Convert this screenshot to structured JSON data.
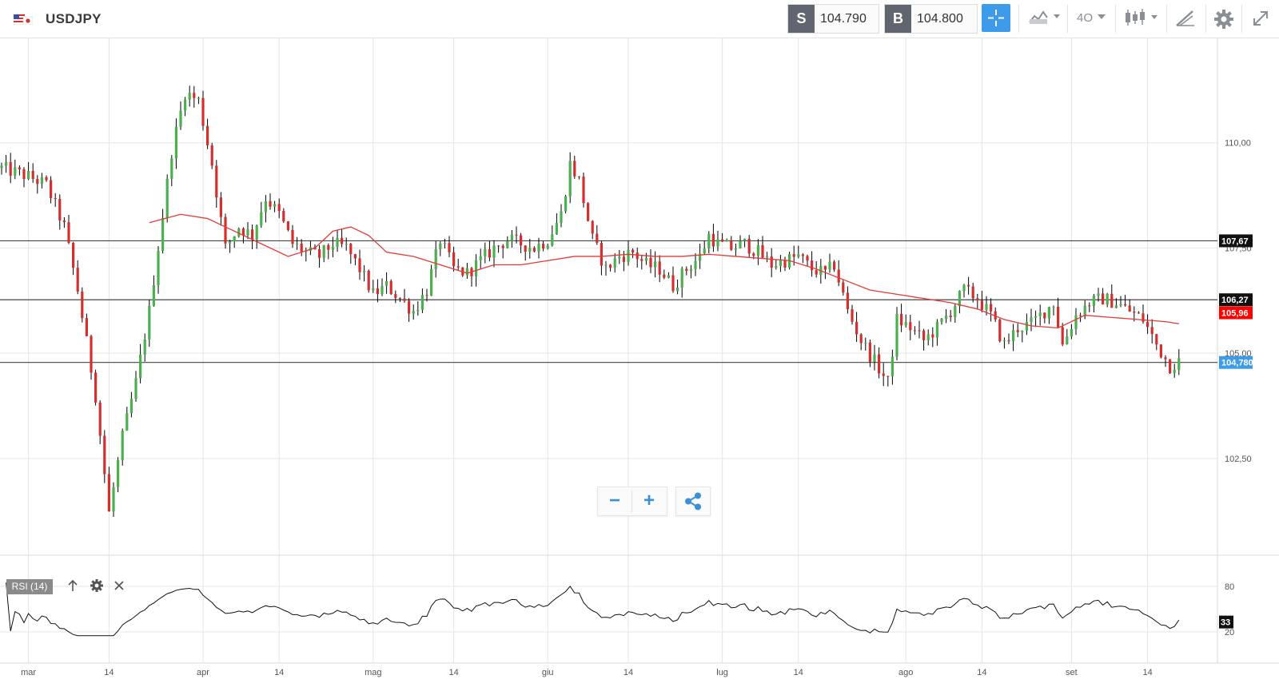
{
  "header": {
    "symbol": "USDJPY",
    "sell_label": "S",
    "sell_price": "104.790",
    "buy_label": "B",
    "buy_price": "104.800",
    "timeframe_label": "4O",
    "icons": [
      "flag-us-jp-icon",
      "crosshair-icon",
      "chart-type-icon",
      "timeframe-dropdown",
      "candles-icon",
      "draw-icon",
      "gear-icon",
      "expand-icon"
    ]
  },
  "colors": {
    "up": "#4caf50",
    "down": "#d32f2f",
    "candle_wick": "#000000",
    "ma": "#e53935",
    "hline": "#444444",
    "grid": "#e6e6e6",
    "current_badge": "#3d9be9",
    "ma_badge": "#ff0000",
    "level_badge": "#111111",
    "accent": "#3d9be9"
  },
  "zoom_controls": {
    "minus": "−",
    "plus": "+"
  },
  "rsi_panel": {
    "label": "RSI (14)",
    "value_badge": "33"
  },
  "chart_data": {
    "type": "candlestick",
    "title": "",
    "x_ticks": [
      "mar",
      "14",
      "apr",
      "14",
      "mag",
      "14",
      "giu",
      "14",
      "lug",
      "14",
      "ago",
      "14",
      "set",
      "14"
    ],
    "y_ticks": [
      "110,00",
      "107,50",
      "105,00",
      "102,50"
    ],
    "ylim": [
      100.2,
      112.5
    ],
    "price_path": [
      [
        0,
        109.4
      ],
      [
        6,
        109.2
      ],
      [
        10,
        109.0
      ],
      [
        14,
        108.0
      ],
      [
        17,
        106.5
      ],
      [
        21,
        104.0
      ],
      [
        24,
        101.2
      ],
      [
        27,
        103.0
      ],
      [
        30,
        104.3
      ],
      [
        33,
        106.0
      ],
      [
        38,
        109.8
      ],
      [
        41,
        111.2
      ],
      [
        44,
        111.0
      ],
      [
        47,
        109.5
      ],
      [
        50,
        107.5
      ],
      [
        53,
        108.0
      ],
      [
        56,
        107.8
      ],
      [
        59,
        108.7
      ],
      [
        62,
        108.3
      ],
      [
        65,
        107.6
      ],
      [
        68,
        107.4
      ],
      [
        71,
        107.3
      ],
      [
        74,
        107.6
      ],
      [
        77,
        107.5
      ],
      [
        80,
        107.0
      ],
      [
        83,
        106.4
      ],
      [
        86,
        106.6
      ],
      [
        89,
        106.3
      ],
      [
        92,
        106.0
      ],
      [
        95,
        106.5
      ],
      [
        98,
        107.7
      ],
      [
        101,
        107.0
      ],
      [
        104,
        106.9
      ],
      [
        107,
        107.2
      ],
      [
        110,
        107.5
      ],
      [
        113,
        107.7
      ],
      [
        116,
        107.6
      ],
      [
        119,
        107.5
      ],
      [
        122,
        107.7
      ],
      [
        125,
        108.3
      ],
      [
        127,
        109.5
      ],
      [
        129,
        109.1
      ],
      [
        132,
        107.7
      ],
      [
        135,
        107.0
      ],
      [
        138,
        107.3
      ],
      [
        141,
        107.4
      ],
      [
        144,
        107.1
      ],
      [
        147,
        107.0
      ],
      [
        150,
        106.6
      ],
      [
        153,
        107.0
      ],
      [
        156,
        107.3
      ],
      [
        158,
        107.8
      ],
      [
        160,
        107.6
      ],
      [
        163,
        107.5
      ],
      [
        166,
        107.6
      ],
      [
        169,
        107.4
      ],
      [
        172,
        107.1
      ],
      [
        175,
        107.2
      ],
      [
        178,
        107.3
      ],
      [
        181,
        107.0
      ],
      [
        184,
        106.9
      ],
      [
        186,
        107.1
      ],
      [
        189,
        106.0
      ],
      [
        192,
        105.3
      ],
      [
        195,
        104.8
      ],
      [
        198,
        104.3
      ],
      [
        200,
        105.8
      ],
      [
        203,
        105.6
      ],
      [
        206,
        105.3
      ],
      [
        209,
        105.6
      ],
      [
        212,
        106.0
      ],
      [
        215,
        106.5
      ],
      [
        218,
        106.3
      ],
      [
        221,
        105.9
      ],
      [
        224,
        105.2
      ],
      [
        227,
        105.6
      ],
      [
        230,
        105.7
      ],
      [
        233,
        106.0
      ],
      [
        235,
        106.2
      ],
      [
        237,
        105.2
      ],
      [
        240,
        105.9
      ],
      [
        243,
        106.2
      ],
      [
        246,
        106.3
      ],
      [
        249,
        106.2
      ],
      [
        252,
        106.0
      ],
      [
        255,
        105.8
      ],
      [
        258,
        105.2
      ],
      [
        261,
        104.7
      ],
      [
        263,
        104.8
      ]
    ],
    "moving_average": {
      "name": "",
      "points": [
        [
          33,
          108.1
        ],
        [
          40,
          108.3
        ],
        [
          46,
          108.2
        ],
        [
          52,
          107.9
        ],
        [
          58,
          107.6
        ],
        [
          64,
          107.3
        ],
        [
          70,
          107.5
        ],
        [
          74,
          107.9
        ],
        [
          78,
          108.0
        ],
        [
          82,
          107.8
        ],
        [
          86,
          107.4
        ],
        [
          92,
          107.3
        ],
        [
          98,
          107.1
        ],
        [
          104,
          106.9
        ],
        [
          110,
          107.1
        ],
        [
          116,
          107.1
        ],
        [
          122,
          107.2
        ],
        [
          128,
          107.3
        ],
        [
          134,
          107.3
        ],
        [
          140,
          107.35
        ],
        [
          146,
          107.3
        ],
        [
          152,
          107.3
        ],
        [
          158,
          107.35
        ],
        [
          164,
          107.3
        ],
        [
          170,
          107.25
        ],
        [
          176,
          107.2
        ],
        [
          182,
          107.0
        ],
        [
          188,
          106.75
        ],
        [
          194,
          106.5
        ],
        [
          200,
          106.4
        ],
        [
          206,
          106.3
        ],
        [
          212,
          106.2
        ],
        [
          218,
          106.05
        ],
        [
          224,
          105.8
        ],
        [
          230,
          105.65
        ],
        [
          236,
          105.6
        ],
        [
          242,
          105.9
        ],
        [
          248,
          105.85
        ],
        [
          254,
          105.8
        ],
        [
          260,
          105.75
        ],
        [
          263,
          105.7
        ]
      ]
    },
    "horizontal_lines": [
      107.67,
      106.27,
      104.78
    ],
    "price_labels": [
      {
        "value": 107.67,
        "label": "107,67"
      },
      {
        "value": 106.27,
        "label": "106,27"
      },
      {
        "value": 105.96,
        "label": "105,96"
      },
      {
        "value": 104.78,
        "label": "104,780"
      }
    ],
    "rsi": {
      "period": 14,
      "y_ticks": [
        "80",
        "20"
      ],
      "ylim": [
        0,
        100
      ],
      "current": 33
    }
  }
}
